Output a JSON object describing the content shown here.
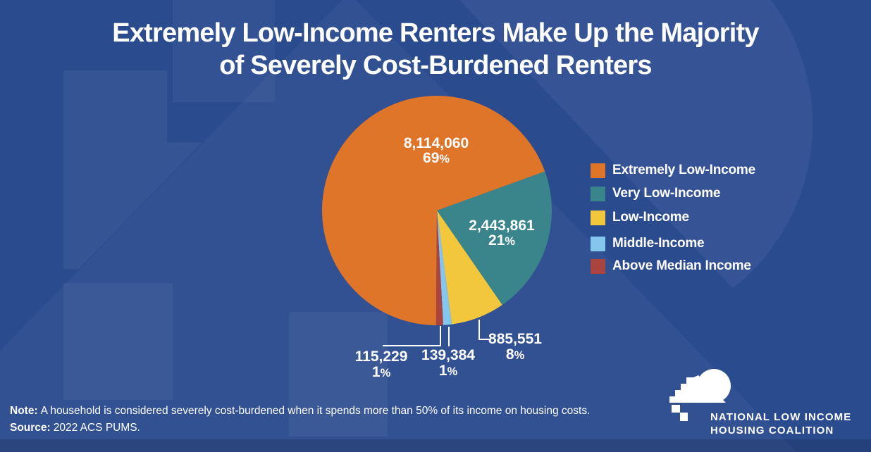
{
  "title": {
    "line1": "Extremely Low-Income Renters Make Up the Majority",
    "line2": "of Severely Cost-Burdened Renters"
  },
  "chart_data": {
    "type": "pie",
    "title": "Severely cost-burdened renters by income group",
    "series": [
      {
        "label": "Extremely Low-Income",
        "value": 8114060,
        "value_display": "8,114,060",
        "pct": "69%",
        "color": "#DE7529",
        "label_placement": "inside"
      },
      {
        "label": "Very Low-Income",
        "value": 2443861,
        "value_display": "2,443,861",
        "pct": "21%",
        "color": "#3A858C",
        "label_placement": "inside"
      },
      {
        "label": "Low-Income",
        "value": 885551,
        "value_display": "885,551",
        "pct": "8%",
        "color": "#F2C73C",
        "label_placement": "outside"
      },
      {
        "label": "Middle-Income",
        "value": 139384,
        "value_display": "139,384",
        "pct": "1%",
        "color": "#85C6EF",
        "label_placement": "outside"
      },
      {
        "label": "Above Median Income",
        "value": 115229,
        "value_display": "115,229",
        "pct": "1%",
        "color": "#A9443F",
        "label_placement": "outside"
      }
    ],
    "start_angle_deg": 180.4,
    "direction": "clockwise",
    "legend_position": "right",
    "grid": false
  },
  "note": {
    "label": "Note:",
    "text": "A household is considered severely cost-burdened when it spends more than 50% of its income on housing costs."
  },
  "source": {
    "label": "Source:",
    "text": "2022 ACS PUMS."
  },
  "logo": {
    "line1": "NATIONAL LOW INCOME",
    "line2": "HOUSING COALITION",
    "icon": "nlihc-house-logo"
  },
  "colors": {
    "background": "#2B4B8F",
    "text": "#FFFFFF",
    "leader_line": "#FFFFFF"
  }
}
